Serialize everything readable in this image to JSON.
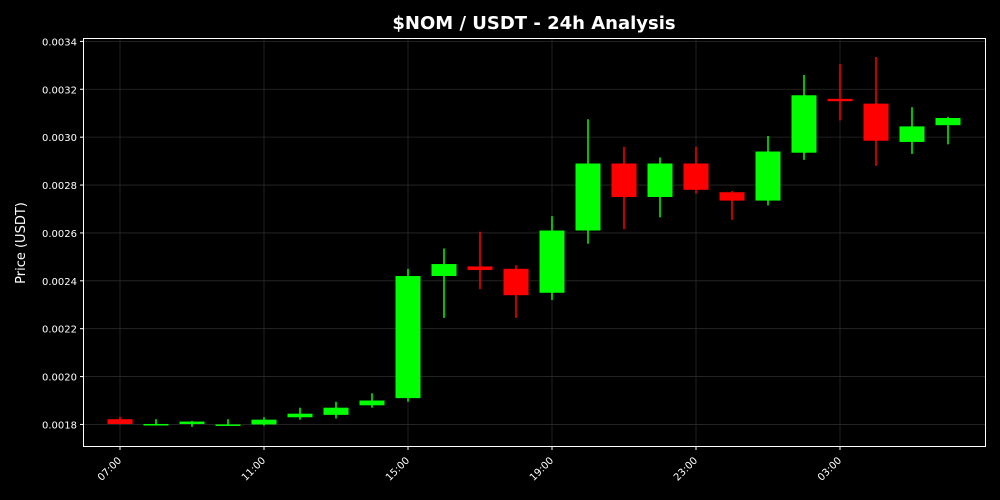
{
  "chart_data": {
    "type": "candlestick",
    "title": "$NOM / USDT - 24h Analysis",
    "xlabel": "",
    "ylabel": "Price (USDT)",
    "ylim": [
      0.00171,
      0.00341
    ],
    "yticks": [
      0.0018,
      0.002,
      0.0022,
      0.0024,
      0.0026,
      0.0028,
      0.003,
      0.0032,
      0.0034
    ],
    "ytick_labels": [
      "0.0018",
      "0.0020",
      "0.0022",
      "0.0024",
      "0.0026",
      "0.0028",
      "0.0030",
      "0.0032",
      "0.0034"
    ],
    "xticks": [
      {
        "index": 0,
        "label": "07:00"
      },
      {
        "index": 4,
        "label": "11:00"
      },
      {
        "index": 8,
        "label": "15:00"
      },
      {
        "index": 12,
        "label": "19:00"
      },
      {
        "index": 16,
        "label": "23:00"
      },
      {
        "index": 20,
        "label": "03:00"
      }
    ],
    "grid": true,
    "colors": {
      "up": "#00ff00",
      "down": "#ff0000",
      "background": "#000000",
      "axes": "#ffffff",
      "grid": "#2a2a2a"
    },
    "candles": [
      {
        "open": 0.001822,
        "high": 0.001832,
        "low": 0.0018,
        "close": 0.001802
      },
      {
        "open": 0.0018,
        "high": 0.001822,
        "low": 0.001795,
        "close": 0.001802
      },
      {
        "open": 0.001802,
        "high": 0.001815,
        "low": 0.00179,
        "close": 0.001812
      },
      {
        "open": 0.001798,
        "high": 0.001822,
        "low": 0.001795,
        "close": 0.0018
      },
      {
        "open": 0.0018,
        "high": 0.00183,
        "low": 0.001795,
        "close": 0.00182
      },
      {
        "open": 0.00183,
        "high": 0.00187,
        "low": 0.00182,
        "close": 0.001845
      },
      {
        "open": 0.00184,
        "high": 0.001895,
        "low": 0.001825,
        "close": 0.00187
      },
      {
        "open": 0.00188,
        "high": 0.00193,
        "low": 0.00187,
        "close": 0.0019
      },
      {
        "open": 0.00191,
        "high": 0.00245,
        "low": 0.001895,
        "close": 0.00242
      },
      {
        "open": 0.00242,
        "high": 0.002535,
        "low": 0.002245,
        "close": 0.00247
      },
      {
        "open": 0.00246,
        "high": 0.002605,
        "low": 0.002365,
        "close": 0.002445
      },
      {
        "open": 0.00245,
        "high": 0.002465,
        "low": 0.002245,
        "close": 0.00234
      },
      {
        "open": 0.00235,
        "high": 0.00267,
        "low": 0.00232,
        "close": 0.00261
      },
      {
        "open": 0.00261,
        "high": 0.003075,
        "low": 0.002555,
        "close": 0.00289
      },
      {
        "open": 0.00289,
        "high": 0.00296,
        "low": 0.002615,
        "close": 0.00275
      },
      {
        "open": 0.00275,
        "high": 0.002915,
        "low": 0.002665,
        "close": 0.00289
      },
      {
        "open": 0.00289,
        "high": 0.00296,
        "low": 0.002765,
        "close": 0.00278
      },
      {
        "open": 0.00277,
        "high": 0.002775,
        "low": 0.002655,
        "close": 0.002735
      },
      {
        "open": 0.002735,
        "high": 0.003005,
        "low": 0.002715,
        "close": 0.00294
      },
      {
        "open": 0.002935,
        "high": 0.00326,
        "low": 0.002905,
        "close": 0.003175
      },
      {
        "open": 0.00316,
        "high": 0.003305,
        "low": 0.00307,
        "close": 0.00315
      },
      {
        "open": 0.00314,
        "high": 0.003335,
        "low": 0.00288,
        "close": 0.002985
      },
      {
        "open": 0.00298,
        "high": 0.003125,
        "low": 0.00293,
        "close": 0.003045
      },
      {
        "open": 0.00305,
        "high": 0.003085,
        "low": 0.00297,
        "close": 0.00308
      }
    ]
  }
}
